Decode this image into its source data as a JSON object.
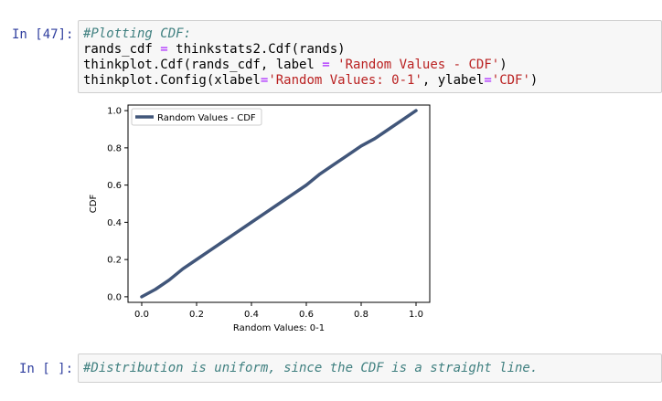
{
  "cells": [
    {
      "prompt": "In [47]:",
      "lines": [
        [
          {
            "t": "#Plotting CDF:",
            "c": "cm-comment"
          }
        ],
        [
          {
            "t": "rands_cdf",
            "c": "cm-var"
          },
          {
            "t": " = ",
            "c": "cm-op"
          },
          {
            "t": "thinkstats2.Cdf(rands)",
            "c": "cm-var"
          }
        ],
        [
          {
            "t": "thinkplot.Cdf(rands_cdf, label ",
            "c": "cm-var"
          },
          {
            "t": "=",
            "c": "cm-op"
          },
          {
            "t": " ",
            "c": "cm-var"
          },
          {
            "t": "'Random Values - CDF'",
            "c": "cm-str"
          },
          {
            "t": ")",
            "c": "cm-var"
          }
        ],
        [
          {
            "t": "thinkplot.Config(xlabel",
            "c": "cm-var"
          },
          {
            "t": "=",
            "c": "cm-op"
          },
          {
            "t": "'Random Values: 0-1'",
            "c": "cm-str"
          },
          {
            "t": ", ylabel",
            "c": "cm-var"
          },
          {
            "t": "=",
            "c": "cm-op"
          },
          {
            "t": "'CDF'",
            "c": "cm-str"
          },
          {
            "t": ")",
            "c": "cm-var"
          }
        ]
      ]
    },
    {
      "prompt": "In [ ]:",
      "lines": [
        [
          {
            "t": "#Distribution is uniform, since the CDF is a straight line.",
            "c": "cm-comment"
          }
        ]
      ]
    }
  ],
  "chart_data": {
    "type": "line",
    "xlabel": "Random Values: 0-1",
    "ylabel": "CDF",
    "xlim": [
      -0.05,
      1.05
    ],
    "ylim": [
      -0.03,
      1.03
    ],
    "xticks": [
      "0.0",
      "0.2",
      "0.4",
      "0.6",
      "0.8",
      "1.0"
    ],
    "yticks": [
      "0.0",
      "0.2",
      "0.4",
      "0.6",
      "0.8",
      "1.0"
    ],
    "legend_position": "top-left",
    "series": [
      {
        "name": "Random Values - CDF",
        "color": "#41567a",
        "x": [
          0.0,
          0.05,
          0.1,
          0.15,
          0.2,
          0.25,
          0.3,
          0.35,
          0.4,
          0.45,
          0.5,
          0.55,
          0.6,
          0.65,
          0.7,
          0.75,
          0.8,
          0.85,
          0.9,
          0.95,
          1.0
        ],
        "y": [
          0.0,
          0.04,
          0.09,
          0.15,
          0.2,
          0.25,
          0.3,
          0.35,
          0.4,
          0.45,
          0.5,
          0.55,
          0.6,
          0.66,
          0.71,
          0.76,
          0.81,
          0.85,
          0.9,
          0.95,
          1.0
        ]
      }
    ]
  }
}
